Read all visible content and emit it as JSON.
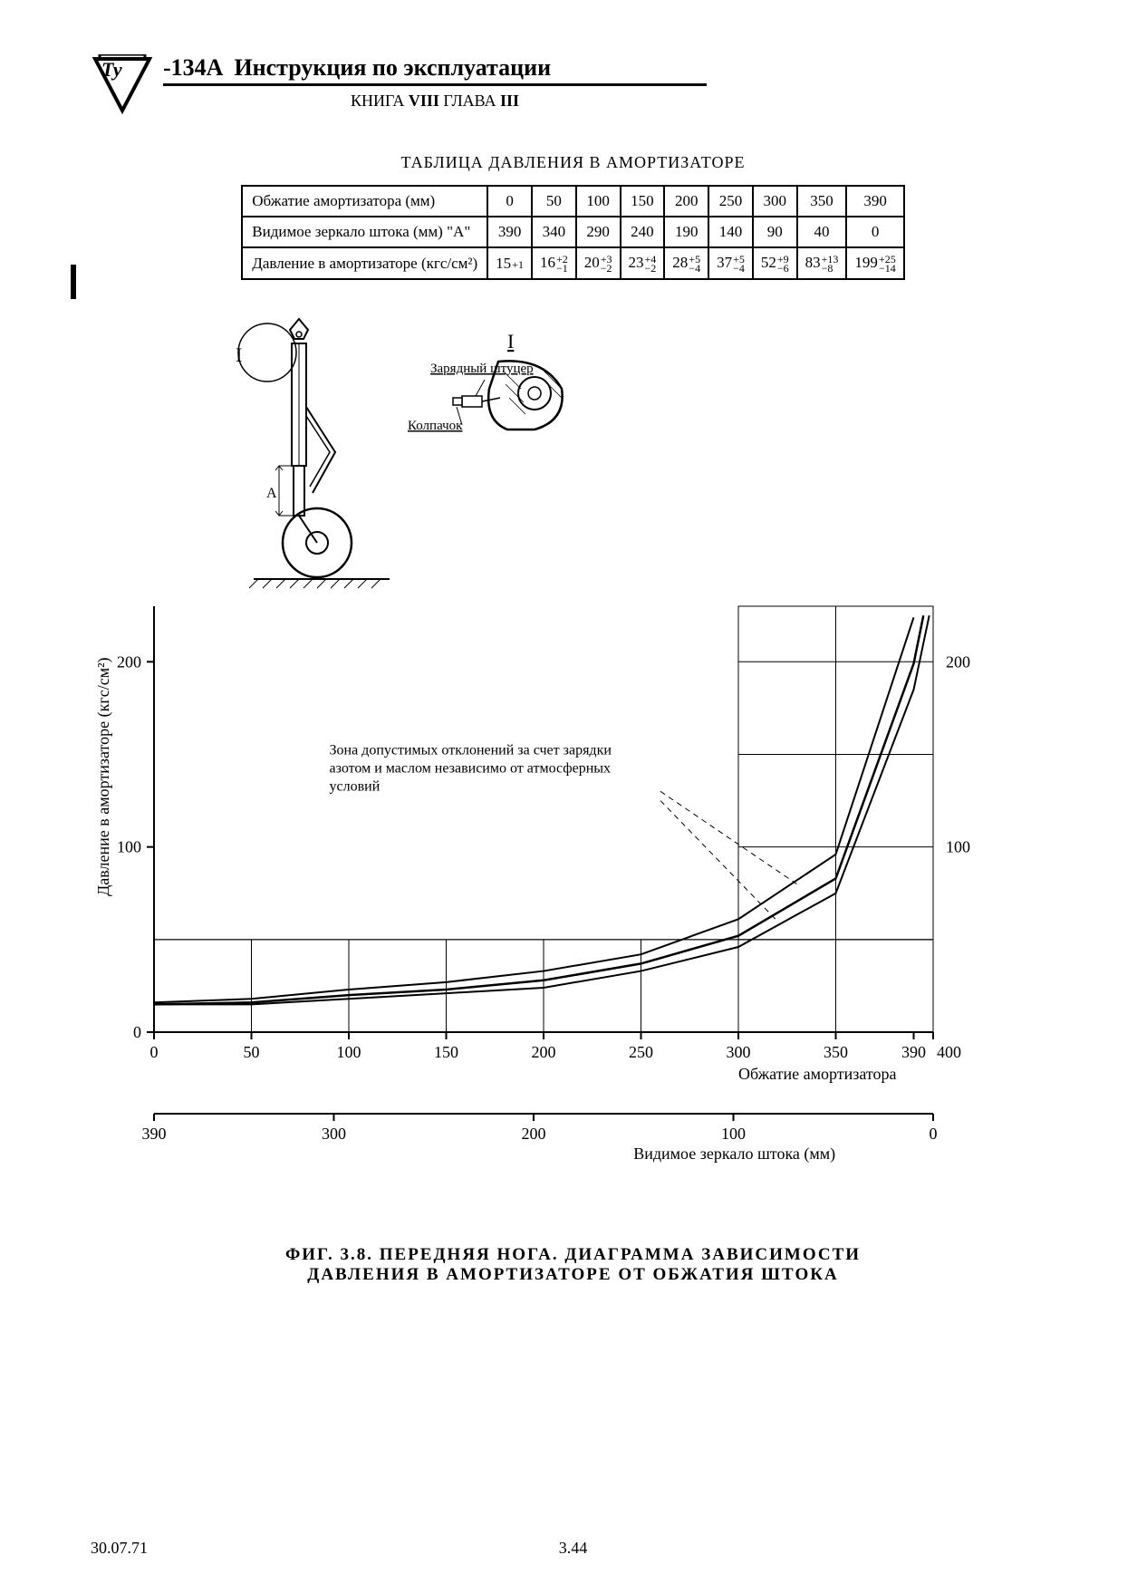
{
  "header": {
    "model": "-134А",
    "title": "Инструкция по эксплуатации",
    "book_prefix": "КНИГА",
    "book_num": "VIII",
    "chapter_prefix": "ГЛАВА",
    "chapter_num": "III"
  },
  "table": {
    "title": "ТАБЛИЦА ДАВЛЕНИЯ В АМОРТИЗАТОРЕ",
    "rows": [
      {
        "label": "Обжатие амортизатора (мм)",
        "values": [
          "0",
          "50",
          "100",
          "150",
          "200",
          "250",
          "300",
          "350",
          "390"
        ]
      },
      {
        "label": "Видимое зеркало штока (мм) \"А\"",
        "values": [
          "390",
          "340",
          "290",
          "240",
          "190",
          "140",
          "90",
          "40",
          "0"
        ]
      },
      {
        "label": "Давление в амортизаторе (кгс/см²)",
        "values_tol": [
          {
            "v": "15",
            "up": "+1",
            "dn": ""
          },
          {
            "v": "16",
            "up": "+2",
            "dn": "−1"
          },
          {
            "v": "20",
            "up": "+3",
            "dn": "−2"
          },
          {
            "v": "23",
            "up": "+4",
            "dn": "−2"
          },
          {
            "v": "28",
            "up": "+5",
            "dn": "−4"
          },
          {
            "v": "37",
            "up": "+5",
            "dn": "−4"
          },
          {
            "v": "52",
            "up": "+9",
            "dn": "−6"
          },
          {
            "v": "83",
            "up": "+13",
            "dn": "−8"
          },
          {
            "v": "199",
            "up": "+25",
            "dn": "−14"
          }
        ]
      }
    ]
  },
  "diagram": {
    "labels": {
      "detail_mark": "I",
      "charging_fitting": "Зарядный штуцер",
      "cap": "Колпачок",
      "dimension": "А"
    }
  },
  "chart": {
    "type": "line",
    "y_label": "Давление в амортизаторе (кгс/см²)",
    "x1_label": "Обжатие амортизатора",
    "x2_label": "Видимое зеркало штока (мм)",
    "annotation": "Зона допустимых отклонений за счет зарядки азотом и маслом независимо от атмосферных условий",
    "x1_ticks": [
      0,
      50,
      100,
      150,
      200,
      250,
      300,
      350,
      390,
      400
    ],
    "x2_ticks": [
      390,
      300,
      200,
      100,
      0
    ],
    "y_ticks": [
      0,
      100,
      200
    ],
    "y_right_ticks": [
      100,
      200
    ],
    "xlim": [
      0,
      400
    ],
    "ylim": [
      0,
      230
    ],
    "mid_curve": [
      [
        0,
        15
      ],
      [
        50,
        16
      ],
      [
        100,
        20
      ],
      [
        150,
        23
      ],
      [
        200,
        28
      ],
      [
        250,
        37
      ],
      [
        300,
        52
      ],
      [
        350,
        83
      ],
      [
        390,
        199
      ],
      [
        395,
        225
      ]
    ],
    "upper_curve": [
      [
        0,
        16
      ],
      [
        50,
        18
      ],
      [
        100,
        23
      ],
      [
        150,
        27
      ],
      [
        200,
        33
      ],
      [
        250,
        42
      ],
      [
        300,
        61
      ],
      [
        350,
        96
      ],
      [
        390,
        224
      ]
    ],
    "lower_curve": [
      [
        0,
        15
      ],
      [
        50,
        15
      ],
      [
        100,
        18
      ],
      [
        150,
        21
      ],
      [
        200,
        24
      ],
      [
        250,
        33
      ],
      [
        300,
        46
      ],
      [
        350,
        75
      ],
      [
        390,
        185
      ],
      [
        398,
        225
      ]
    ],
    "tolerance_band_y": [
      0,
      50
    ],
    "line_color": "#000000",
    "grid_color": "#000000",
    "background": "#ffffff",
    "line_width": 2
  },
  "caption": {
    "line1": "ФИГ. 3.8. ПЕРЕДНЯЯ НОГА. ДИАГРАММА ЗАВИСИМОСТИ",
    "line2": "ДАВЛЕНИЯ В АМОРТИЗАТОРЕ ОТ ОБЖАТИЯ ШТОКА"
  },
  "footer": {
    "date": "30.07.71",
    "page": "3.44"
  }
}
